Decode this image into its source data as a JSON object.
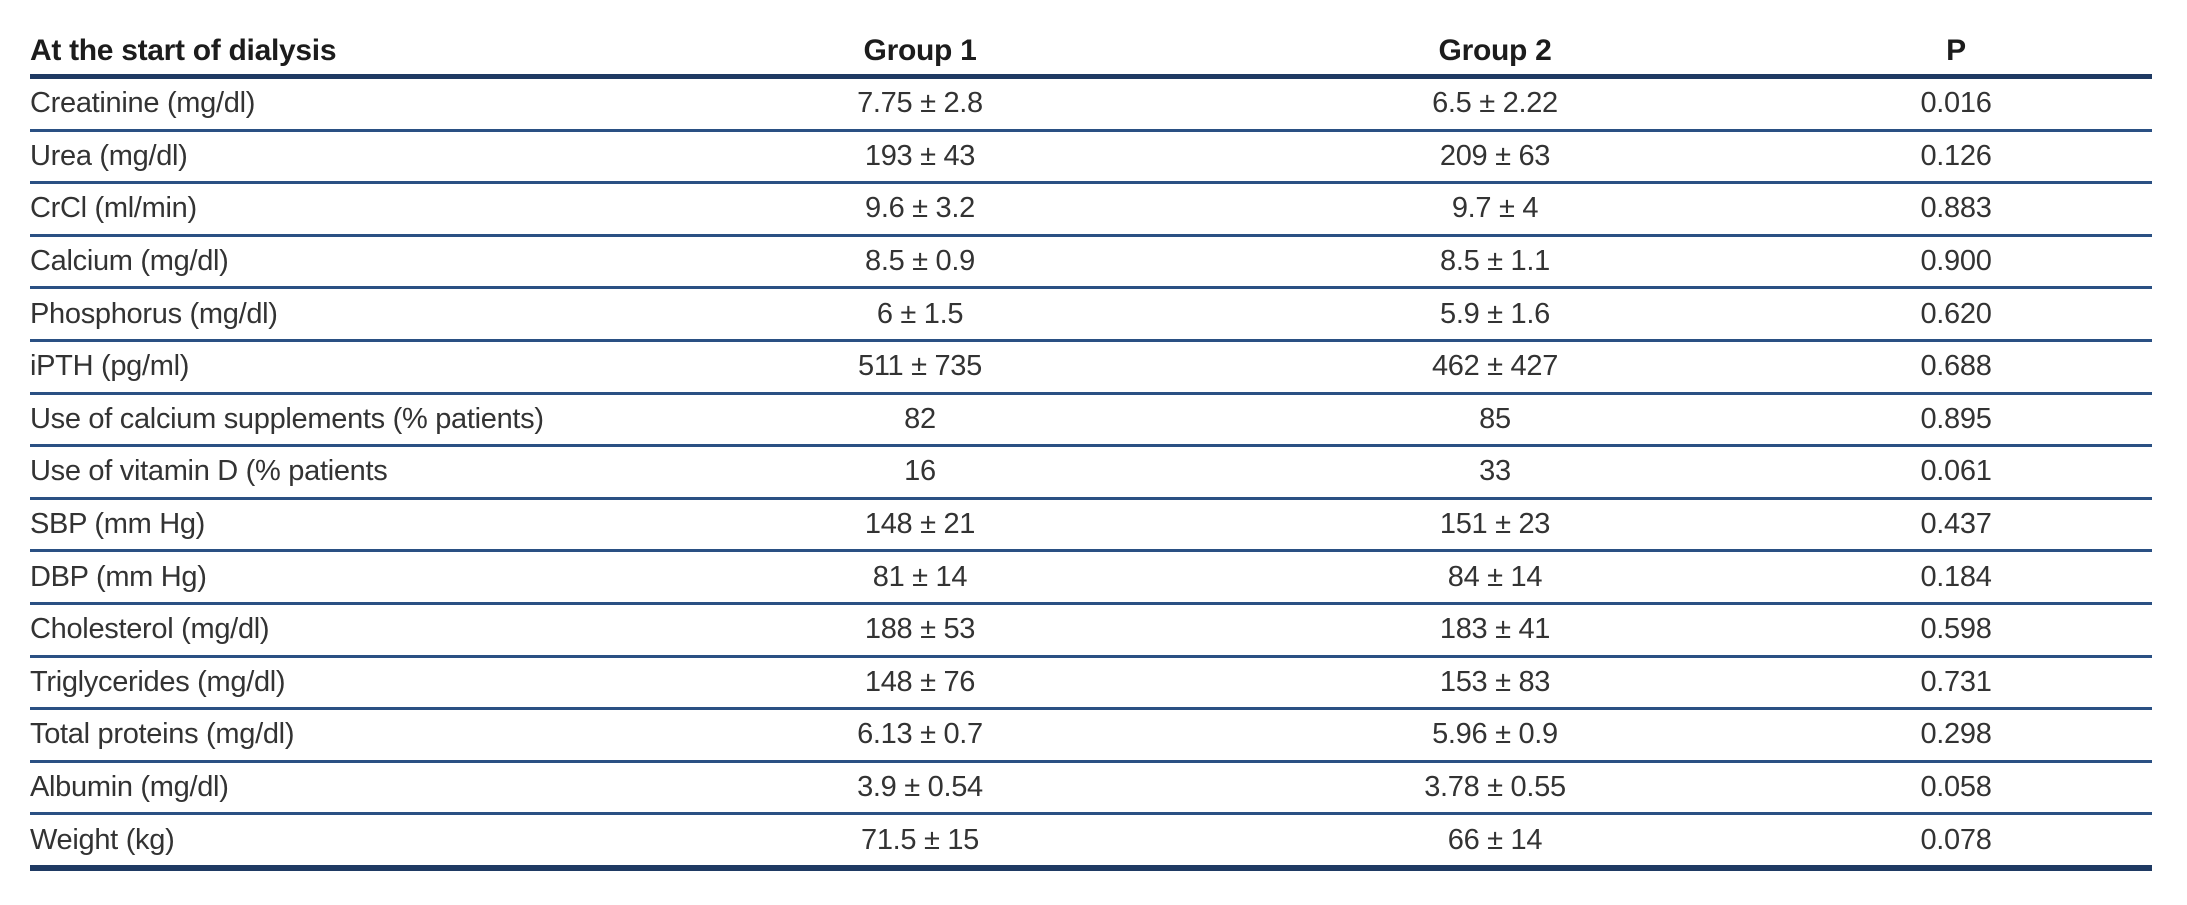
{
  "table": {
    "columns": [
      "At the start of dialysis",
      "Group 1",
      "Group 2",
      "P"
    ],
    "rows": [
      {
        "label": "Creatinine (mg/dl)",
        "group1": "7.75 ± 2.8",
        "group2": "6.5 ± 2.22",
        "p": "0.016"
      },
      {
        "label": "Urea (mg/dl)",
        "group1": "193 ± 43",
        "group2": "209 ± 63",
        "p": "0.126"
      },
      {
        "label": "CrCl (ml/min)",
        "group1": "9.6 ± 3.2",
        "group2": "9.7 ± 4",
        "p": "0.883"
      },
      {
        "label": "Calcium (mg/dl)",
        "group1": "8.5 ± 0.9",
        "group2": "8.5 ± 1.1",
        "p": "0.900"
      },
      {
        "label": "Phosphorus (mg/dl)",
        "group1": "6 ± 1.5",
        "group2": "5.9 ± 1.6",
        "p": "0.620"
      },
      {
        "label": "iPTH (pg/ml)",
        "group1": "511 ± 735",
        "group2": "462 ± 427",
        "p": "0.688"
      },
      {
        "label": "Use of calcium supplements (% patients)",
        "group1": "82",
        "group2": "85",
        "p": "0.895"
      },
      {
        "label": "Use of vitamin D (% patients",
        "group1": "16",
        "group2": "33",
        "p": "0.061"
      },
      {
        "label": "SBP (mm Hg)",
        "group1": "148 ± 21",
        "group2": "151 ± 23",
        "p": "0.437"
      },
      {
        "label": "DBP (mm Hg)",
        "group1": "81 ± 14",
        "group2": "84 ± 14",
        "p": "0.184"
      },
      {
        "label": "Cholesterol (mg/dl)",
        "group1": "188 ± 53",
        "group2": "183 ± 41",
        "p": "0.598"
      },
      {
        "label": "Triglycerides (mg/dl)",
        "group1": "148 ± 76",
        "group2": "153 ± 83",
        "p": "0.731"
      },
      {
        "label": "Total proteins (mg/dl)",
        "group1": "6.13 ± 0.7",
        "group2": "5.96 ± 0.9",
        "p": "0.298"
      },
      {
        "label": "Albumin (mg/dl)",
        "group1": "3.9 ± 0.54",
        "group2": "3.78 ± 0.55",
        "p": "0.058"
      },
      {
        "label": "Weight (kg)",
        "group1": "71.5 ± 15",
        "group2": "66 ± 14",
        "p": "0.078"
      }
    ]
  },
  "colors": {
    "rule_thick": "#1f3a63",
    "rule_thin": "#2a5083",
    "header_text": "#1c1c1c",
    "body_text": "#333333",
    "background": "#ffffff"
  }
}
